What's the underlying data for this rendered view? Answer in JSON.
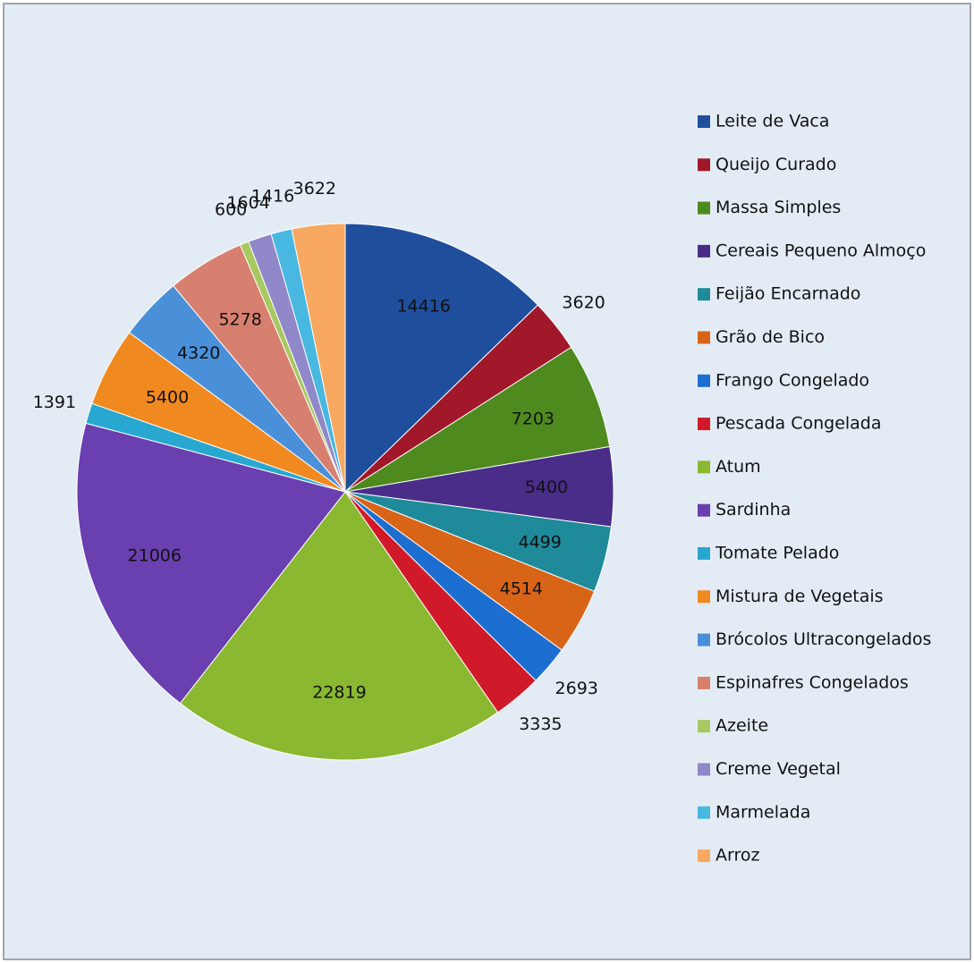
{
  "chart_data": {
    "type": "pie",
    "categories": [
      "Leite de Vaca",
      "Queijo Curado",
      "Massa Simples",
      "Cereais Pequeno Almoço",
      "Feijão Encarnado",
      "Grão de Bico",
      "Frango Congelado",
      "Pescada Congelada",
      "Atum",
      "Sardinha",
      "Tomate Pelado",
      "Mistura de Vegetais",
      "Brócolos Ultracongelados",
      "Espinafres Congelados",
      "Azeite",
      "Creme Vegetal",
      "Marmelada",
      "Arroz"
    ],
    "values": [
      14416,
      3620,
      7203,
      5400,
      4499,
      4514,
      2693,
      3335,
      22819,
      21006,
      1391,
      5400,
      4320,
      5278,
      600,
      1604,
      1416,
      3622
    ],
    "colors": [
      "#1f4e9c",
      "#a0182a",
      "#4e8a1e",
      "#4a2d88",
      "#1e8a9a",
      "#d86418",
      "#1c6fd0",
      "#d01a2a",
      "#8ab830",
      "#6a3fb0",
      "#28a8d0",
      "#f08a20",
      "#4a90d8",
      "#d88070",
      "#a8c860",
      "#9088c8",
      "#48b8e0",
      "#f8a860"
    ],
    "legend": "right"
  }
}
